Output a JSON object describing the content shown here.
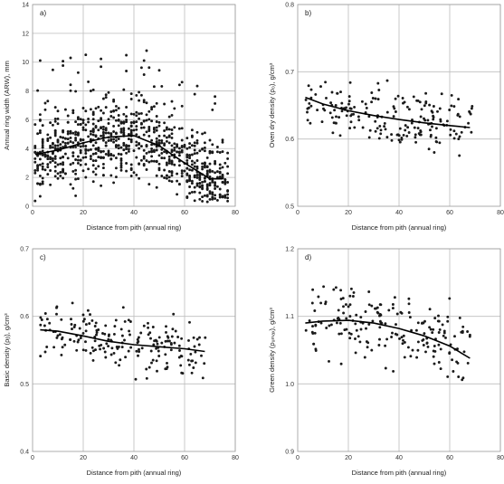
{
  "chart_data": [
    {
      "panel": "a)",
      "type": "scatter",
      "xlabel": "Distance from pith (annual ring)",
      "ylabel": "Annual ring width (ARW), mm",
      "xlim": [
        0,
        80
      ],
      "ylim": [
        0,
        14
      ],
      "xticks": [
        0,
        20,
        40,
        60,
        80
      ],
      "yticks": [
        0,
        2,
        4,
        6,
        8,
        10,
        12,
        14
      ],
      "grid": true,
      "scatter_profile": {
        "x_range": [
          1,
          77
        ],
        "mean_curve": "fit",
        "spread": 2.3,
        "count": 900,
        "y_min": 0.3,
        "y_max": 13
      },
      "fit_line": {
        "x": [
          1,
          10,
          20,
          30,
          40,
          50,
          60,
          70,
          75
        ],
        "y": [
          3.6,
          3.9,
          4.4,
          4.8,
          4.9,
          4.2,
          3.0,
          1.9,
          1.9
        ]
      }
    },
    {
      "panel": "b)",
      "type": "scatter",
      "xlabel": "Distance from pith (annual ring)",
      "ylabel": "Oven dry density (ρ₀), g/cm³",
      "xlim": [
        0,
        80
      ],
      "ylim": [
        0.5,
        0.8
      ],
      "xticks": [
        0,
        20,
        40,
        60,
        80
      ],
      "yticks": [
        0.5,
        0.6,
        0.7,
        0.8
      ],
      "grid": true,
      "scatter_profile": {
        "x_range": [
          3,
          69
        ],
        "mean_curve": "fit",
        "spread": 0.038,
        "count": 200,
        "y_min": 0.57,
        "y_max": 0.695
      },
      "fit_line": {
        "x": [
          3,
          10,
          20,
          30,
          40,
          50,
          60,
          68
        ],
        "y": [
          0.662,
          0.652,
          0.642,
          0.635,
          0.629,
          0.624,
          0.62,
          0.617
        ]
      }
    },
    {
      "panel": "c)",
      "type": "scatter",
      "xlabel": "Distance from pith (annual ring)",
      "ylabel": "Basic density (ρᵦ), g/cm³",
      "xlim": [
        0,
        80
      ],
      "ylim": [
        0.4,
        0.7
      ],
      "xticks": [
        0,
        20,
        40,
        60,
        80
      ],
      "yticks": [
        0.4,
        0.5,
        0.6,
        0.7
      ],
      "grid": true,
      "scatter_profile": {
        "x_range": [
          3,
          69
        ],
        "mean_curve": "fit",
        "spread": 0.035,
        "count": 200,
        "y_min": 0.505,
        "y_max": 0.62
      },
      "fit_line": {
        "x": [
          3,
          10,
          20,
          30,
          40,
          50,
          60,
          68
        ],
        "y": [
          0.58,
          0.578,
          0.571,
          0.563,
          0.558,
          0.555,
          0.552,
          0.548
        ]
      }
    },
    {
      "panel": "d)",
      "type": "scatter",
      "xlabel": "Distance from pith (annual ring)",
      "ylabel": "Green density (ρᵤₘₐₓ), g/cm³",
      "xlim": [
        0,
        80
      ],
      "ylim": [
        0.9,
        1.2
      ],
      "xticks": [
        0,
        20,
        40,
        60,
        80
      ],
      "yticks": [
        0.9,
        1.0,
        1.1,
        1.2
      ],
      "grid": true,
      "scatter_profile": {
        "x_range": [
          3,
          69
        ],
        "mean_curve": "fit",
        "spread": 0.045,
        "count": 200,
        "y_min": 1.0,
        "y_max": 1.16
      },
      "fit_line": {
        "x": [
          3,
          10,
          20,
          30,
          40,
          50,
          60,
          68
        ],
        "y": [
          1.09,
          1.093,
          1.094,
          1.09,
          1.082,
          1.071,
          1.056,
          1.038
        ]
      }
    }
  ]
}
